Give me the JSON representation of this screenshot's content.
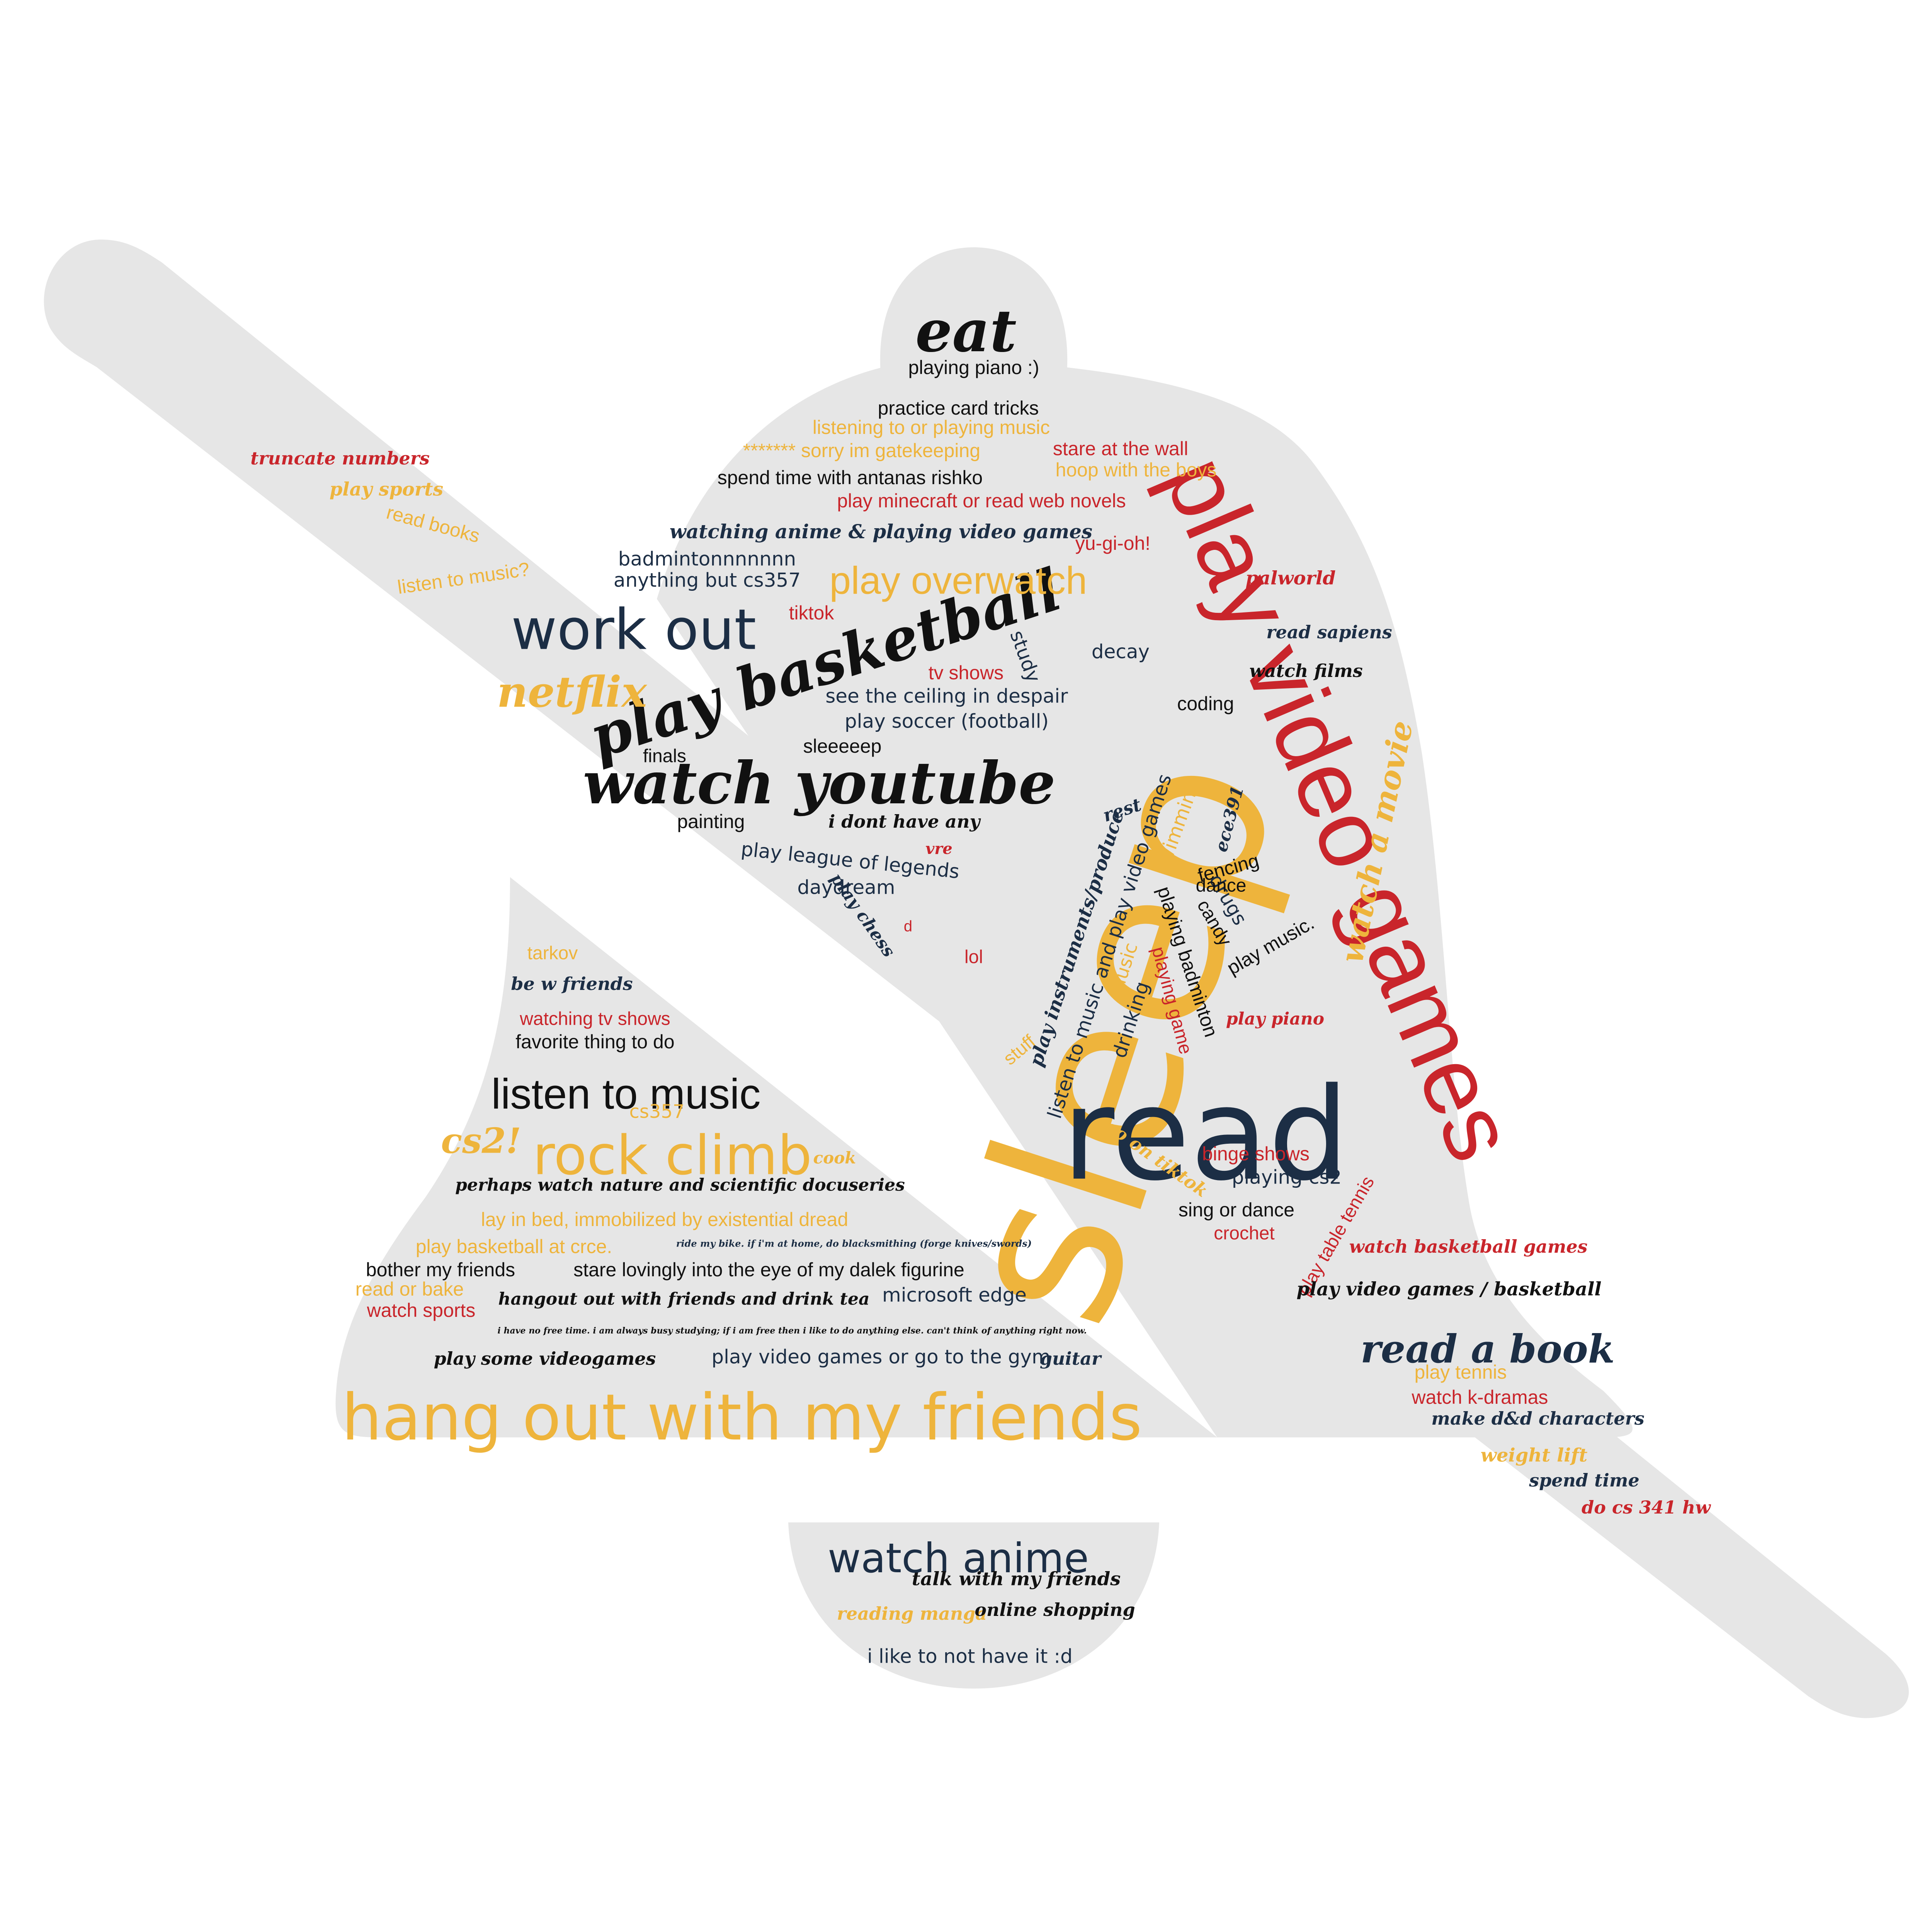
{
  "palette": {
    "shape_fill": "#e6e6e6",
    "navy": "#1c2e45",
    "black": "#111111",
    "red": "#c9252b",
    "yellow": "#eeb43c"
  },
  "shape": {
    "icon": "bell-slash-icon"
  },
  "words": [
    {
      "text": "sleep",
      "color": "yellow",
      "font": "light"
    },
    {
      "text": "play video games",
      "color": "red",
      "font": "sans"
    },
    {
      "text": "read",
      "color": "navy",
      "font": "light"
    },
    {
      "text": "hang out with my friends",
      "color": "yellow",
      "font": "light"
    },
    {
      "text": "watch youtube",
      "color": "black",
      "font": "script"
    },
    {
      "text": "play basketball",
      "color": "black",
      "font": "script"
    },
    {
      "text": "work out",
      "color": "navy",
      "font": "light"
    },
    {
      "text": "eat",
      "color": "black",
      "font": "script"
    },
    {
      "text": "rock climb",
      "color": "yellow",
      "font": "light"
    },
    {
      "text": "listen to music",
      "color": "black",
      "font": "sans"
    },
    {
      "text": "watch anime",
      "color": "navy",
      "font": "light"
    },
    {
      "text": "read a book",
      "color": "navy",
      "font": "script"
    },
    {
      "text": "netflix",
      "color": "yellow",
      "font": "script"
    },
    {
      "text": "play overwatch",
      "color": "yellow",
      "font": "sans"
    },
    {
      "text": "watch a movie",
      "color": "yellow",
      "font": "script"
    },
    {
      "text": "cs2!",
      "color": "yellow",
      "font": "script"
    },
    {
      "text": "playing piano :)",
      "color": "black",
      "font": "sans"
    },
    {
      "text": "practice card tricks",
      "color": "black",
      "font": "sans"
    },
    {
      "text": "listening to or playing music",
      "color": "yellow",
      "font": "sans"
    },
    {
      "text": "******* sorry im gatekeeping",
      "color": "yellow",
      "font": "sans"
    },
    {
      "text": "stare at the wall",
      "color": "red",
      "font": "sans"
    },
    {
      "text": "hoop with the boys",
      "color": "yellow",
      "font": "sans"
    },
    {
      "text": "spend time with antanas rishko",
      "color": "black",
      "font": "sans"
    },
    {
      "text": "play minecraft or read web novels",
      "color": "red",
      "font": "sans"
    },
    {
      "text": "watching anime & playing video games",
      "color": "navy",
      "font": "script"
    },
    {
      "text": "yu-gi-oh!",
      "color": "red",
      "font": "sans"
    },
    {
      "text": "badmintonnnnnnn",
      "color": "navy",
      "font": "light"
    },
    {
      "text": "anything but cs357",
      "color": "navy",
      "font": "light"
    },
    {
      "text": "palworld",
      "color": "red",
      "font": "script"
    },
    {
      "text": "tiktok",
      "color": "red",
      "font": "sans"
    },
    {
      "text": "read sapiens",
      "color": "navy",
      "font": "script"
    },
    {
      "text": "decay",
      "color": "navy",
      "font": "light"
    },
    {
      "text": "study",
      "color": "navy",
      "font": "light"
    },
    {
      "text": "watch films",
      "color": "black",
      "font": "script"
    },
    {
      "text": "tv shows",
      "color": "red",
      "font": "sans"
    },
    {
      "text": "coding",
      "color": "black",
      "font": "sans"
    },
    {
      "text": "see the ceiling in despair",
      "color": "navy",
      "font": "light"
    },
    {
      "text": "play soccer (football)",
      "color": "navy",
      "font": "light"
    },
    {
      "text": "sleeeeep",
      "color": "black",
      "font": "sans"
    },
    {
      "text": "finals",
      "color": "black",
      "font": "sans"
    },
    {
      "text": "rest",
      "color": "navy",
      "font": "script"
    },
    {
      "text": "ece391",
      "color": "navy",
      "font": "script"
    },
    {
      "text": "swimming",
      "color": "yellow",
      "font": "light"
    },
    {
      "text": "painting",
      "color": "black",
      "font": "sans"
    },
    {
      "text": "i dont have any",
      "color": "black",
      "font": "script"
    },
    {
      "text": "play league of legends",
      "color": "navy",
      "font": "light"
    },
    {
      "text": "vre",
      "color": "red",
      "font": "script"
    },
    {
      "text": "fencing",
      "color": "black",
      "font": "sans"
    },
    {
      "text": "daydream",
      "color": "navy",
      "font": "light"
    },
    {
      "text": "listen to music and play video games",
      "color": "navy",
      "font": "light"
    },
    {
      "text": "play instruments/produce",
      "color": "navy",
      "font": "script"
    },
    {
      "text": "drugs",
      "color": "navy",
      "font": "light"
    },
    {
      "text": "dance",
      "color": "black",
      "font": "sans"
    },
    {
      "text": "playing badminton",
      "color": "black",
      "font": "sans"
    },
    {
      "text": "candy",
      "color": "black",
      "font": "sans"
    },
    {
      "text": "play chess",
      "color": "navy",
      "font": "script"
    },
    {
      "text": "d",
      "color": "red",
      "font": "sans"
    },
    {
      "text": "lol",
      "color": "red",
      "font": "sans"
    },
    {
      "text": "play music.",
      "color": "black",
      "font": "sans"
    },
    {
      "text": "music",
      "color": "yellow",
      "font": "light"
    },
    {
      "text": "playing game",
      "color": "red",
      "font": "sans"
    },
    {
      "text": "drinking",
      "color": "navy",
      "font": "light"
    },
    {
      "text": "play piano",
      "color": "red",
      "font": "script"
    },
    {
      "text": "stuff",
      "color": "yellow",
      "font": "sans"
    },
    {
      "text": "tarkov",
      "color": "yellow",
      "font": "sans"
    },
    {
      "text": "be w friends",
      "color": "navy",
      "font": "script"
    },
    {
      "text": "watching tv shows",
      "color": "red",
      "font": "sans"
    },
    {
      "text": "favorite thing to do",
      "color": "black",
      "font": "sans"
    },
    {
      "text": "cs357",
      "color": "yellow",
      "font": "light"
    },
    {
      "text": "cook",
      "color": "yellow",
      "font": "script"
    },
    {
      "text": "go on tiktok",
      "color": "yellow",
      "font": "script"
    },
    {
      "text": "binge shows",
      "color": "red",
      "font": "sans"
    },
    {
      "text": "playing cs2",
      "color": "navy",
      "font": "light"
    },
    {
      "text": "perhaps watch nature and scientific docuseries",
      "color": "black",
      "font": "script"
    },
    {
      "text": "sing or dance",
      "color": "black",
      "font": "sans"
    },
    {
      "text": "crochet",
      "color": "red",
      "font": "sans"
    },
    {
      "text": "play table tennis",
      "color": "red",
      "font": "sans"
    },
    {
      "text": "lay in bed, immobilized by existential dread",
      "color": "yellow",
      "font": "sans"
    },
    {
      "text": "play basketball at crce.",
      "color": "yellow",
      "font": "sans"
    },
    {
      "text": "ride my bike. if i'm at home, do blacksmithing (forge knives/swords)",
      "color": "navy",
      "font": "script"
    },
    {
      "text": "watch basketball games",
      "color": "red",
      "font": "script"
    },
    {
      "text": "bother my friends",
      "color": "black",
      "font": "sans"
    },
    {
      "text": "stare lovingly into the eye of my dalek figurine",
      "color": "black",
      "font": "sans"
    },
    {
      "text": "play video games / basketball",
      "color": "black",
      "font": "script"
    },
    {
      "text": "read or bake",
      "color": "yellow",
      "font": "sans"
    },
    {
      "text": "watch sports",
      "color": "red",
      "font": "sans"
    },
    {
      "text": "hangout out with friends and drink tea",
      "color": "black",
      "font": "script"
    },
    {
      "text": "microsoft edge",
      "color": "navy",
      "font": "light"
    },
    {
      "text": "i have no free time. i am always busy studying; if i am free then i like to do anything else. can't think of anything right now.",
      "color": "black",
      "font": "script"
    },
    {
      "text": "play some videogames",
      "color": "black",
      "font": "script"
    },
    {
      "text": "play video games or go to the gym",
      "color": "navy",
      "font": "light"
    },
    {
      "text": "guitar",
      "color": "navy",
      "font": "script"
    },
    {
      "text": "play tennis",
      "color": "yellow",
      "font": "sans"
    },
    {
      "text": "watch k-dramas",
      "color": "red",
      "font": "sans"
    },
    {
      "text": "make d&d characters",
      "color": "navy",
      "font": "script"
    },
    {
      "text": "weight lift",
      "color": "yellow",
      "font": "script"
    },
    {
      "text": "spend time",
      "color": "navy",
      "font": "script"
    },
    {
      "text": "do cs 341 hw",
      "color": "red",
      "font": "script"
    },
    {
      "text": "truncate numbers",
      "color": "red",
      "font": "script"
    },
    {
      "text": "play sports",
      "color": "yellow",
      "font": "script"
    },
    {
      "text": "read books",
      "color": "yellow",
      "font": "sans"
    },
    {
      "text": "listen to music?",
      "color": "yellow",
      "font": "sans"
    },
    {
      "text": "talk with my friends",
      "color": "black",
      "font": "script"
    },
    {
      "text": "reading manga",
      "color": "yellow",
      "font": "script"
    },
    {
      "text": "online shopping",
      "color": "black",
      "font": "script"
    },
    {
      "text": "i like to not have it :d",
      "color": "navy",
      "font": "light"
    }
  ]
}
